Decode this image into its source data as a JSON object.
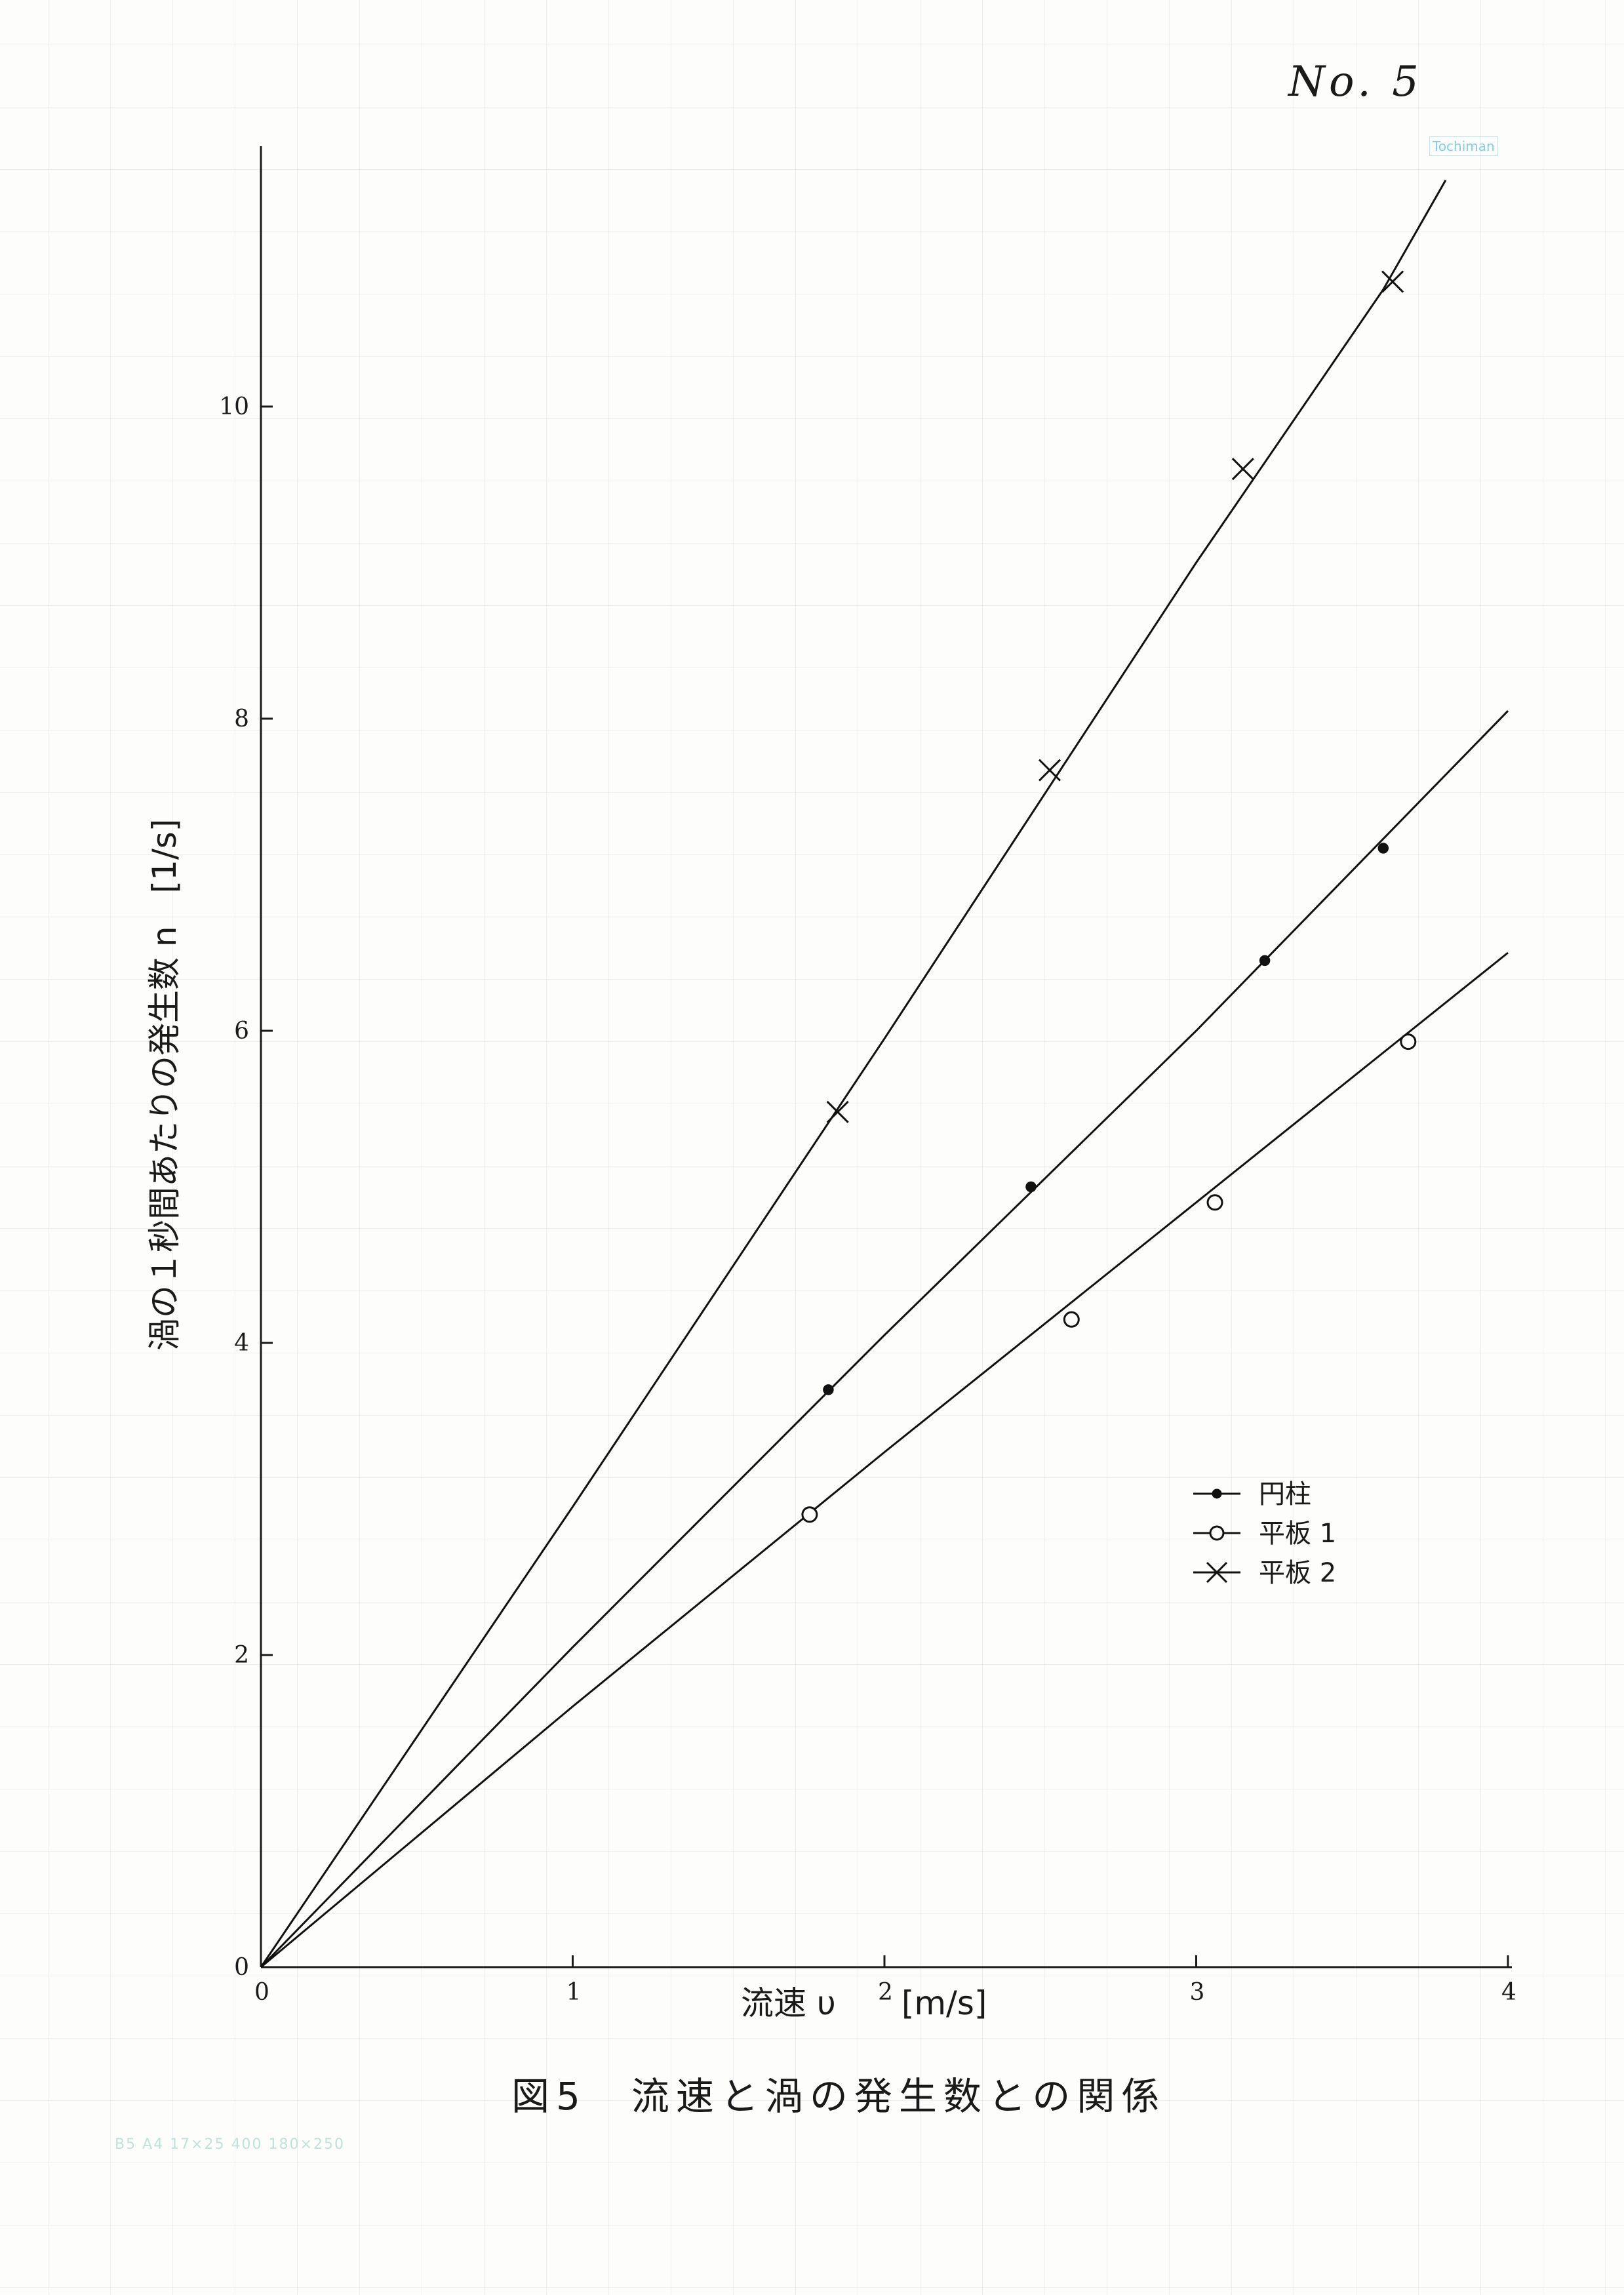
{
  "page_number": "No. 5",
  "paper_brand": "Tochiman",
  "paper_spec": "B5 A4 17×25 400 180×250",
  "caption": "図5　流速と渦の発生数との関係",
  "chart_data": {
    "type": "scatter",
    "title": "",
    "xlabel": "流速 υ　　[m/s]",
    "ylabel": "渦の１秒間あたりの発生数 n　[1/s]",
    "xlim": [
      0,
      4
    ],
    "ylim": [
      0,
      11.5
    ],
    "xticks": [
      0,
      1,
      2,
      3,
      4
    ],
    "yticks": [
      0,
      2,
      4,
      6,
      8,
      10
    ],
    "grid": false,
    "legend_position": "right",
    "series": [
      {
        "name": "円柱",
        "marker": "filled-circle",
        "color": "#111111",
        "x": [
          1.82,
          2.47,
          3.22,
          3.6
        ],
        "y": [
          3.7,
          5.0,
          6.45,
          7.17
        ],
        "fit": [
          [
            0,
            0
          ],
          [
            1.0,
            2.05
          ],
          [
            2.0,
            4.05
          ],
          [
            3.0,
            6.0
          ],
          [
            4.0,
            8.05
          ]
        ]
      },
      {
        "name": "平板 1",
        "marker": "open-circle",
        "color": "#111111",
        "x": [
          1.76,
          2.6,
          3.06,
          3.68
        ],
        "y": [
          2.9,
          4.15,
          4.9,
          5.93
        ],
        "fit": [
          [
            0,
            0
          ],
          [
            1.0,
            1.67
          ],
          [
            2.0,
            3.3
          ],
          [
            3.0,
            4.9
          ],
          [
            4.0,
            6.5
          ]
        ]
      },
      {
        "name": "平板 2",
        "marker": "cross",
        "color": "#111111",
        "x": [
          1.85,
          2.53,
          3.15,
          3.63
        ],
        "y": [
          5.48,
          7.67,
          9.6,
          10.8
        ],
        "fit": [
          [
            0,
            0
          ],
          [
            1.0,
            2.95
          ],
          [
            2.0,
            5.95
          ],
          [
            3.0,
            9.0
          ],
          [
            3.6,
            10.75
          ],
          [
            3.8,
            11.45
          ]
        ]
      }
    ]
  }
}
